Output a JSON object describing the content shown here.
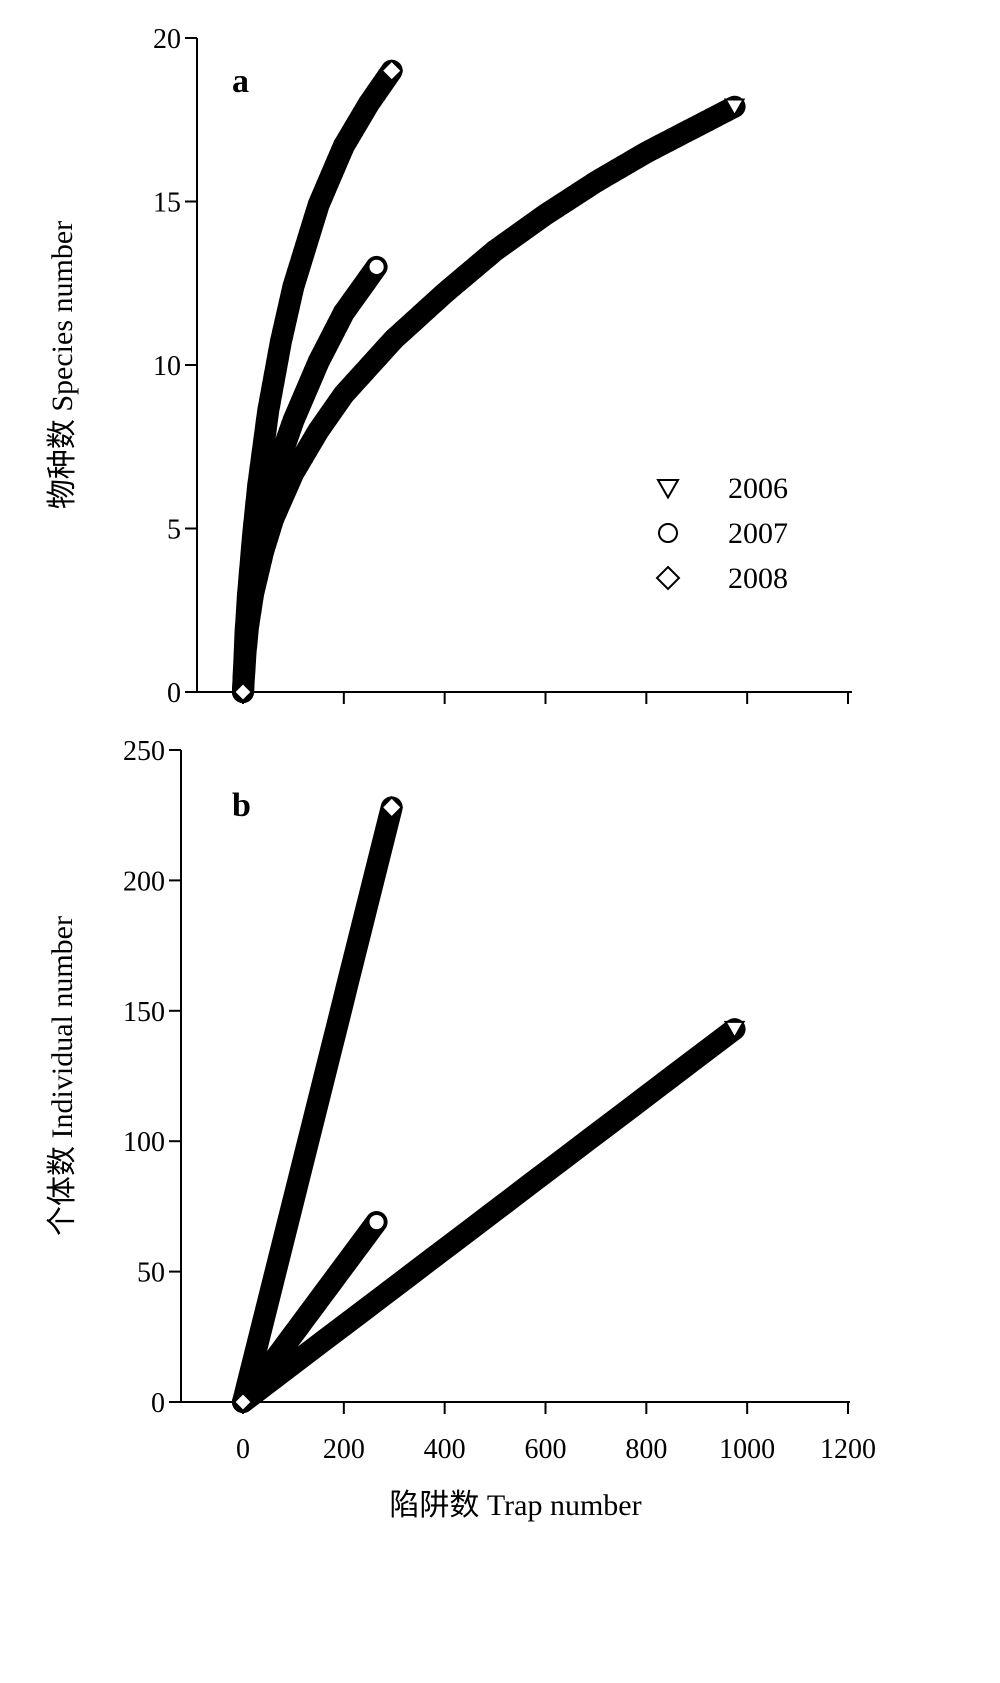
{
  "chart_data": [
    {
      "type": "scatter",
      "panel_label": "a",
      "xlim": [
        -60,
        1200
      ],
      "ylim": [
        0,
        20
      ],
      "yticks": [
        0,
        5,
        10,
        15,
        20
      ],
      "xticks": [
        0,
        200,
        400,
        600,
        800,
        1000,
        1200
      ],
      "x_tick_labels_shown": false,
      "ylabel": "物种数 Species number",
      "legend_position": "right-middle",
      "legend": [
        {
          "label": "2006",
          "marker": "triangle-down"
        },
        {
          "label": "2007",
          "marker": "circle"
        },
        {
          "label": "2008",
          "marker": "diamond"
        }
      ],
      "series": [
        {
          "name": "2006",
          "marker": "triangle-down",
          "points": [
            [
              0,
              0
            ],
            [
              5,
              1.2
            ],
            [
              10,
              2.0
            ],
            [
              20,
              3.0
            ],
            [
              40,
              4.3
            ],
            [
              60,
              5.3
            ],
            [
              100,
              6.7
            ],
            [
              150,
              8.0
            ],
            [
              200,
              9.1
            ],
            [
              300,
              10.8
            ],
            [
              400,
              12.2
            ],
            [
              500,
              13.5
            ],
            [
              600,
              14.6
            ],
            [
              700,
              15.6
            ],
            [
              800,
              16.5
            ],
            [
              900,
              17.3
            ],
            [
              975,
              17.9
            ]
          ]
        },
        {
          "name": "2007",
          "marker": "circle",
          "points": [
            [
              0,
              0
            ],
            [
              5,
              1.5
            ],
            [
              10,
              2.4
            ],
            [
              20,
              3.5
            ],
            [
              30,
              4.3
            ],
            [
              50,
              5.8
            ],
            [
              75,
              7.2
            ],
            [
              100,
              8.3
            ],
            [
              150,
              10.1
            ],
            [
              200,
              11.6
            ],
            [
              265,
              13.0
            ]
          ]
        },
        {
          "name": "2008",
          "marker": "diamond",
          "points": [
            [
              0,
              0
            ],
            [
              5,
              1.8
            ],
            [
              10,
              3.0
            ],
            [
              20,
              4.8
            ],
            [
              30,
              6.3
            ],
            [
              50,
              8.6
            ],
            [
              75,
              10.7
            ],
            [
              100,
              12.4
            ],
            [
              150,
              14.9
            ],
            [
              200,
              16.7
            ],
            [
              250,
              18.0
            ],
            [
              295,
              19.0
            ]
          ]
        }
      ]
    },
    {
      "type": "scatter",
      "panel_label": "b",
      "xlim": [
        -60,
        1200
      ],
      "ylim": [
        0,
        250
      ],
      "yticks": [
        0,
        50,
        100,
        150,
        200,
        250
      ],
      "xticks": [
        0,
        200,
        400,
        600,
        800,
        1000,
        1200
      ],
      "xlabel": "陷阱数 Trap number",
      "ylabel": "个体数 Individual number",
      "series": [
        {
          "name": "2006",
          "marker": "triangle-down",
          "points": [
            [
              0,
              0
            ],
            [
              975,
              143
            ]
          ]
        },
        {
          "name": "2007",
          "marker": "circle",
          "points": [
            [
              0,
              0
            ],
            [
              265,
              69
            ]
          ]
        },
        {
          "name": "2008",
          "marker": "diamond",
          "points": [
            [
              0,
              0
            ],
            [
              295,
              228
            ]
          ]
        }
      ]
    }
  ]
}
